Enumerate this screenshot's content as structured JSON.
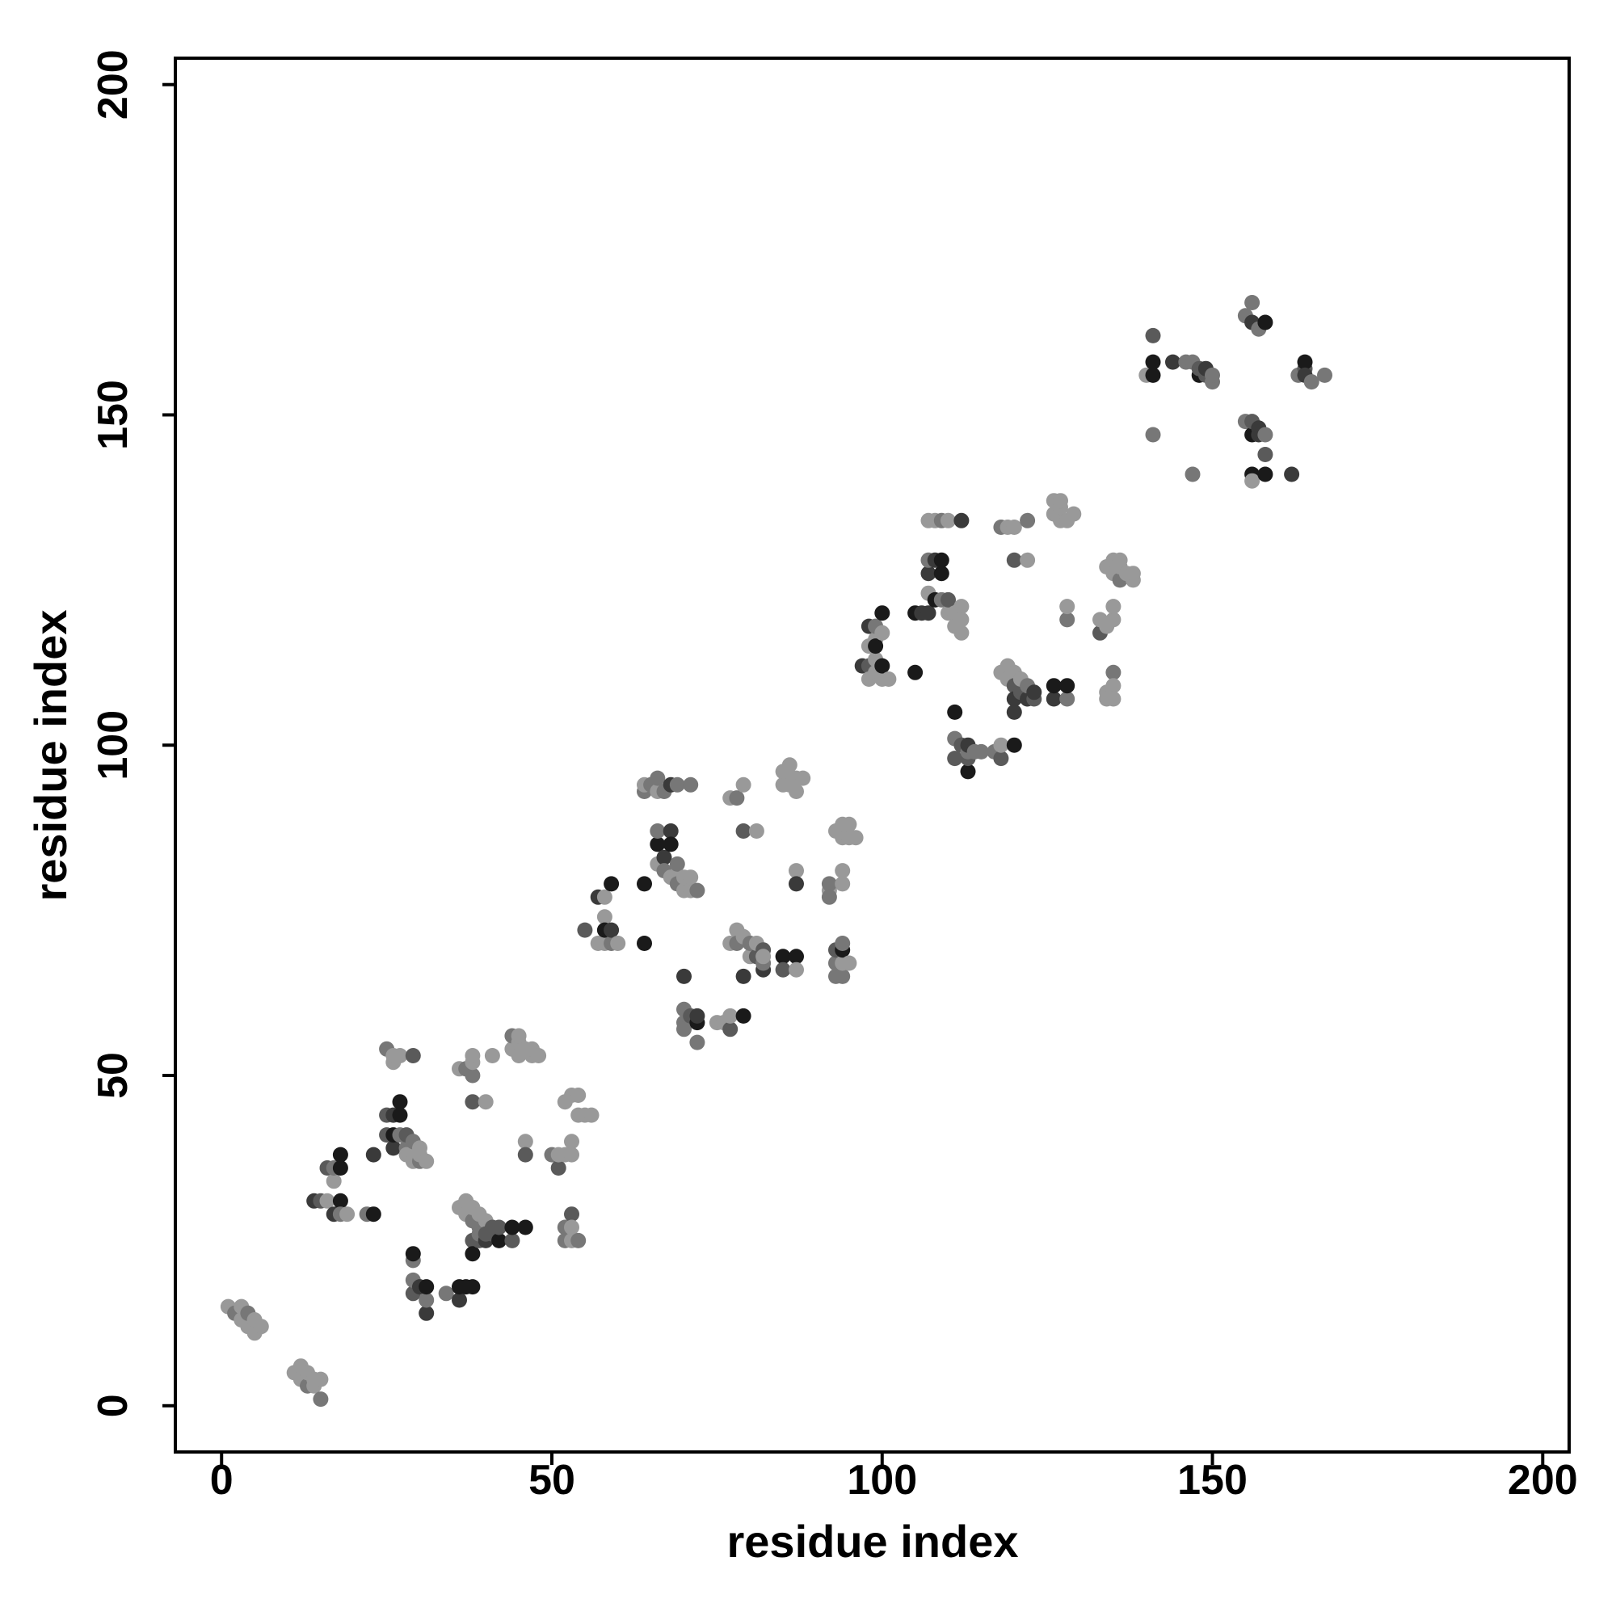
{
  "chart_data": {
    "type": "scatter",
    "title": "",
    "xlabel": "residue index",
    "ylabel": "residue index",
    "xlim": [
      -7,
      204
    ],
    "ylim": [
      -7,
      204
    ],
    "xticks": [
      0,
      50,
      100,
      150,
      200
    ],
    "yticks": [
      0,
      50,
      100,
      150,
      200
    ],
    "xtick_labels": [
      "0",
      "50",
      "100",
      "150",
      "200"
    ],
    "ytick_labels": [
      "0",
      "50",
      "100",
      "150",
      "200"
    ],
    "grid": false,
    "legend": "none",
    "colors": {
      "c1": "#1a1a1a",
      "c2": "#3a3a3a",
      "c3": "#5a5a5a",
      "c4": "#777777",
      "c5": "#999999"
    },
    "points": [
      [
        1,
        15,
        5
      ],
      [
        2,
        14,
        4
      ],
      [
        3,
        13,
        5
      ],
      [
        3,
        15,
        5
      ],
      [
        4,
        12,
        5
      ],
      [
        4,
        14,
        4
      ],
      [
        5,
        11,
        5
      ],
      [
        5,
        13,
        5
      ],
      [
        6,
        12,
        5
      ],
      [
        11,
        5,
        5
      ],
      [
        12,
        4,
        5
      ],
      [
        12,
        6,
        5
      ],
      [
        13,
        3,
        4
      ],
      [
        13,
        5,
        5
      ],
      [
        14,
        4,
        5
      ],
      [
        14,
        3,
        5
      ],
      [
        15,
        1,
        4
      ],
      [
        15,
        4,
        5
      ],
      [
        14,
        31,
        2
      ],
      [
        15,
        31,
        3
      ],
      [
        16,
        31,
        5
      ],
      [
        16,
        36,
        3
      ],
      [
        17,
        34,
        5
      ],
      [
        17,
        29,
        2
      ],
      [
        17,
        36,
        4
      ],
      [
        18,
        31,
        1
      ],
      [
        18,
        36,
        1
      ],
      [
        18,
        38,
        1
      ],
      [
        18,
        29,
        4
      ],
      [
        19,
        29,
        5
      ],
      [
        22,
        29,
        4
      ],
      [
        23,
        29,
        1
      ],
      [
        23,
        38,
        2
      ],
      [
        25,
        41,
        3
      ],
      [
        25,
        44,
        3
      ],
      [
        25,
        54,
        4
      ],
      [
        26,
        39,
        2
      ],
      [
        26,
        41,
        1
      ],
      [
        26,
        44,
        2
      ],
      [
        26,
        52,
        5
      ],
      [
        26,
        53,
        5
      ],
      [
        27,
        41,
        4
      ],
      [
        27,
        44,
        1
      ],
      [
        27,
        46,
        1
      ],
      [
        27,
        53,
        5
      ],
      [
        28,
        39,
        4
      ],
      [
        28,
        41,
        3
      ],
      [
        28,
        38,
        5
      ],
      [
        29,
        38,
        5
      ],
      [
        29,
        40,
        4
      ],
      [
        29,
        53,
        3
      ],
      [
        29,
        37,
        5
      ],
      [
        30,
        37,
        4
      ],
      [
        30,
        38,
        5
      ],
      [
        30,
        39,
        5
      ],
      [
        31,
        37,
        5
      ],
      [
        29,
        17,
        3
      ],
      [
        29,
        19,
        4
      ],
      [
        29,
        22,
        4
      ],
      [
        29,
        23,
        1
      ],
      [
        30,
        18,
        2
      ],
      [
        31,
        14,
        2
      ],
      [
        31,
        16,
        4
      ],
      [
        31,
        18,
        1
      ],
      [
        34,
        17,
        4
      ],
      [
        36,
        16,
        2
      ],
      [
        36,
        18,
        1
      ],
      [
        37,
        18,
        1
      ],
      [
        38,
        18,
        1
      ],
      [
        36,
        30,
        5
      ],
      [
        36,
        51,
        5
      ],
      [
        37,
        29,
        5
      ],
      [
        37,
        31,
        5
      ],
      [
        37,
        51,
        4
      ],
      [
        38,
        28,
        4
      ],
      [
        38,
        30,
        5
      ],
      [
        38,
        25,
        3
      ],
      [
        38,
        23,
        1
      ],
      [
        38,
        46,
        3
      ],
      [
        38,
        50,
        4
      ],
      [
        38,
        52,
        5
      ],
      [
        38,
        53,
        5
      ],
      [
        39,
        27,
        4
      ],
      [
        39,
        29,
        5
      ],
      [
        39,
        25,
        3
      ],
      [
        39,
        26,
        4
      ],
      [
        40,
        28,
        5
      ],
      [
        40,
        25,
        2
      ],
      [
        40,
        26,
        3
      ],
      [
        40,
        46,
        5
      ],
      [
        41,
        27,
        3
      ],
      [
        41,
        26,
        3
      ],
      [
        41,
        53,
        5
      ],
      [
        42,
        25,
        1
      ],
      [
        42,
        27,
        3
      ],
      [
        44,
        25,
        3
      ],
      [
        44,
        27,
        1
      ],
      [
        44,
        54,
        5
      ],
      [
        44,
        56,
        4
      ],
      [
        45,
        53,
        5
      ],
      [
        45,
        55,
        5
      ],
      [
        45,
        56,
        5
      ],
      [
        46,
        40,
        5
      ],
      [
        46,
        38,
        3
      ],
      [
        46,
        27,
        1
      ],
      [
        46,
        54,
        5
      ],
      [
        47,
        53,
        5
      ],
      [
        47,
        54,
        5
      ],
      [
        48,
        53,
        5
      ],
      [
        50,
        38,
        4
      ],
      [
        51,
        36,
        3
      ],
      [
        51,
        38,
        5
      ],
      [
        52,
        38,
        5
      ],
      [
        52,
        46,
        5
      ],
      [
        52,
        25,
        4
      ],
      [
        52,
        27,
        4
      ],
      [
        53,
        47,
        5
      ],
      [
        53,
        40,
        5
      ],
      [
        53,
        38,
        5
      ],
      [
        53,
        29,
        3
      ],
      [
        53,
        27,
        5
      ],
      [
        53,
        25,
        5
      ],
      [
        54,
        44,
        5
      ],
      [
        54,
        47,
        5
      ],
      [
        54,
        25,
        4
      ],
      [
        55,
        44,
        5
      ],
      [
        56,
        44,
        5
      ],
      [
        55,
        72,
        3
      ],
      [
        57,
        77,
        2
      ],
      [
        57,
        70,
        5
      ],
      [
        58,
        74,
        5
      ],
      [
        58,
        70,
        5
      ],
      [
        58,
        72,
        1
      ],
      [
        58,
        77,
        5
      ],
      [
        59,
        70,
        4
      ],
      [
        59,
        72,
        2
      ],
      [
        59,
        79,
        1
      ],
      [
        60,
        70,
        5
      ],
      [
        64,
        79,
        1
      ],
      [
        64,
        70,
        1
      ],
      [
        64,
        93,
        4
      ],
      [
        64,
        94,
        5
      ],
      [
        65,
        94,
        4
      ],
      [
        66,
        82,
        5
      ],
      [
        66,
        85,
        1
      ],
      [
        66,
        87,
        4
      ],
      [
        66,
        93,
        5
      ],
      [
        66,
        95,
        4
      ],
      [
        67,
        83,
        2
      ],
      [
        67,
        93,
        4
      ],
      [
        67,
        81,
        4
      ],
      [
        68,
        80,
        5
      ],
      [
        68,
        94,
        2
      ],
      [
        68,
        87,
        2
      ],
      [
        68,
        85,
        1
      ],
      [
        69,
        80,
        5
      ],
      [
        69,
        82,
        4
      ],
      [
        69,
        94,
        4
      ],
      [
        69,
        79,
        4
      ],
      [
        70,
        78,
        5
      ],
      [
        70,
        80,
        5
      ],
      [
        70,
        65,
        2
      ],
      [
        70,
        60,
        4
      ],
      [
        70,
        58,
        4
      ],
      [
        70,
        57,
        4
      ],
      [
        71,
        78,
        5
      ],
      [
        71,
        80,
        5
      ],
      [
        71,
        59,
        3
      ],
      [
        71,
        94,
        4
      ],
      [
        72,
        58,
        1
      ],
      [
        72,
        55,
        4
      ],
      [
        72,
        59,
        2
      ],
      [
        72,
        78,
        4
      ],
      [
        75,
        58,
        5
      ],
      [
        76,
        58,
        5
      ],
      [
        77,
        57,
        3
      ],
      [
        77,
        59,
        5
      ],
      [
        77,
        70,
        5
      ],
      [
        77,
        92,
        5
      ],
      [
        78,
        72,
        5
      ],
      [
        78,
        70,
        4
      ],
      [
        78,
        92,
        4
      ],
      [
        79,
        71,
        5
      ],
      [
        79,
        87,
        3
      ],
      [
        79,
        94,
        5
      ],
      [
        79,
        59,
        1
      ],
      [
        79,
        65,
        2
      ],
      [
        80,
        68,
        5
      ],
      [
        80,
        70,
        4
      ],
      [
        81,
        68,
        3
      ],
      [
        81,
        70,
        5
      ],
      [
        81,
        87,
        5
      ],
      [
        82,
        66,
        2
      ],
      [
        82,
        67,
        4
      ],
      [
        82,
        69,
        3
      ],
      [
        82,
        68,
        5
      ],
      [
        85,
        94,
        5
      ],
      [
        85,
        96,
        5
      ],
      [
        85,
        68,
        1
      ],
      [
        85,
        66,
        3
      ],
      [
        86,
        95,
        5
      ],
      [
        86,
        94,
        5
      ],
      [
        86,
        97,
        5
      ],
      [
        87,
        95,
        5
      ],
      [
        87,
        93,
        5
      ],
      [
        87,
        81,
        5
      ],
      [
        87,
        79,
        2
      ],
      [
        87,
        68,
        1
      ],
      [
        87,
        66,
        5
      ],
      [
        88,
        95,
        5
      ],
      [
        92,
        78,
        5
      ],
      [
        92,
        79,
        4
      ],
      [
        92,
        77,
        4
      ],
      [
        93,
        87,
        5
      ],
      [
        93,
        65,
        4
      ],
      [
        93,
        67,
        4
      ],
      [
        93,
        69,
        3
      ],
      [
        94,
        86,
        5
      ],
      [
        94,
        88,
        5
      ],
      [
        94,
        79,
        5
      ],
      [
        94,
        81,
        5
      ],
      [
        94,
        65,
        4
      ],
      [
        94,
        67,
        5
      ],
      [
        94,
        69,
        1
      ],
      [
        94,
        70,
        4
      ],
      [
        95,
        86,
        5
      ],
      [
        95,
        88,
        5
      ],
      [
        95,
        67,
        5
      ],
      [
        96,
        86,
        5
      ],
      [
        97,
        112,
        2
      ],
      [
        98,
        112,
        3
      ],
      [
        98,
        110,
        5
      ],
      [
        98,
        115,
        5
      ],
      [
        98,
        118,
        2
      ],
      [
        99,
        111,
        5
      ],
      [
        99,
        113,
        5
      ],
      [
        99,
        116,
        5
      ],
      [
        99,
        118,
        4
      ],
      [
        99,
        115,
        1
      ],
      [
        100,
        110,
        5
      ],
      [
        100,
        112,
        1
      ],
      [
        100,
        117,
        5
      ],
      [
        100,
        120,
        1
      ],
      [
        101,
        110,
        5
      ],
      [
        105,
        120,
        1
      ],
      [
        105,
        111,
        1
      ],
      [
        106,
        120,
        2
      ],
      [
        107,
        120,
        2
      ],
      [
        107,
        123,
        5
      ],
      [
        107,
        126,
        2
      ],
      [
        107,
        128,
        4
      ],
      [
        107,
        134,
        5
      ],
      [
        108,
        122,
        1
      ],
      [
        108,
        128,
        2
      ],
      [
        108,
        134,
        5
      ],
      [
        109,
        122,
        4
      ],
      [
        109,
        126,
        1
      ],
      [
        109,
        128,
        1
      ],
      [
        109,
        134,
        4
      ],
      [
        110,
        120,
        5
      ],
      [
        110,
        122,
        3
      ],
      [
        110,
        134,
        5
      ],
      [
        111,
        120,
        5
      ],
      [
        111,
        118,
        5
      ],
      [
        111,
        105,
        1
      ],
      [
        111,
        101,
        4
      ],
      [
        111,
        98,
        3
      ],
      [
        112,
        121,
        5
      ],
      [
        112,
        119,
        5
      ],
      [
        112,
        117,
        5
      ],
      [
        112,
        100,
        3
      ],
      [
        112,
        134,
        2
      ],
      [
        113,
        96,
        1
      ],
      [
        113,
        98,
        3
      ],
      [
        113,
        99,
        4
      ],
      [
        113,
        100,
        2
      ],
      [
        114,
        99,
        4
      ],
      [
        115,
        99,
        4
      ],
      [
        117,
        99,
        4
      ],
      [
        118,
        98,
        3
      ],
      [
        118,
        100,
        5
      ],
      [
        118,
        111,
        5
      ],
      [
        118,
        133,
        4
      ],
      [
        119,
        112,
        5
      ],
      [
        119,
        110,
        5
      ],
      [
        119,
        133,
        5
      ],
      [
        120,
        133,
        5
      ],
      [
        120,
        128,
        3
      ],
      [
        120,
        111,
        5
      ],
      [
        120,
        109,
        3
      ],
      [
        120,
        107,
        2
      ],
      [
        120,
        105,
        2
      ],
      [
        120,
        100,
        1
      ],
      [
        121,
        108,
        3
      ],
      [
        121,
        110,
        5
      ],
      [
        122,
        107,
        2
      ],
      [
        122,
        109,
        4
      ],
      [
        122,
        128,
        5
      ],
      [
        122,
        134,
        4
      ],
      [
        123,
        107,
        3
      ],
      [
        123,
        108,
        2
      ],
      [
        126,
        107,
        2
      ],
      [
        126,
        109,
        1
      ],
      [
        126,
        135,
        5
      ],
      [
        126,
        137,
        5
      ],
      [
        127,
        134,
        5
      ],
      [
        127,
        136,
        5
      ],
      [
        127,
        137,
        5
      ],
      [
        128,
        107,
        4
      ],
      [
        128,
        109,
        1
      ],
      [
        128,
        119,
        4
      ],
      [
        128,
        121,
        5
      ],
      [
        128,
        134,
        5
      ],
      [
        129,
        135,
        5
      ],
      [
        133,
        117,
        3
      ],
      [
        133,
        119,
        5
      ],
      [
        134,
        118,
        5
      ],
      [
        134,
        108,
        5
      ],
      [
        134,
        107,
        5
      ],
      [
        134,
        127,
        5
      ],
      [
        135,
        128,
        5
      ],
      [
        135,
        126,
        5
      ],
      [
        135,
        111,
        4
      ],
      [
        135,
        109,
        5
      ],
      [
        135,
        119,
        5
      ],
      [
        135,
        121,
        5
      ],
      [
        135,
        107,
        5
      ],
      [
        136,
        125,
        4
      ],
      [
        136,
        127,
        5
      ],
      [
        136,
        128,
        5
      ],
      [
        137,
        126,
        5
      ],
      [
        138,
        125,
        5
      ],
      [
        138,
        126,
        5
      ],
      [
        140,
        156,
        5
      ],
      [
        141,
        147,
        4
      ],
      [
        141,
        156,
        1
      ],
      [
        141,
        158,
        1
      ],
      [
        141,
        162,
        3
      ],
      [
        144,
        158,
        2
      ],
      [
        146,
        158,
        4
      ],
      [
        147,
        141,
        4
      ],
      [
        147,
        158,
        4
      ],
      [
        148,
        156,
        1
      ],
      [
        148,
        157,
        3
      ],
      [
        149,
        156,
        3
      ],
      [
        149,
        157,
        2
      ],
      [
        150,
        155,
        4
      ],
      [
        150,
        156,
        4
      ],
      [
        155,
        149,
        4
      ],
      [
        155,
        165,
        4
      ],
      [
        156,
        147,
        1
      ],
      [
        156,
        149,
        3
      ],
      [
        156,
        141,
        1
      ],
      [
        156,
        140,
        5
      ],
      [
        156,
        164,
        2
      ],
      [
        156,
        167,
        4
      ],
      [
        157,
        163,
        4
      ],
      [
        157,
        147,
        2
      ],
      [
        157,
        148,
        2
      ],
      [
        158,
        141,
        1
      ],
      [
        158,
        147,
        4
      ],
      [
        158,
        164,
        1
      ],
      [
        158,
        144,
        3
      ],
      [
        162,
        141,
        2
      ],
      [
        163,
        156,
        4
      ],
      [
        164,
        157,
        3
      ],
      [
        164,
        158,
        1
      ],
      [
        164,
        156,
        2
      ],
      [
        165,
        155,
        4
      ],
      [
        167,
        156,
        4
      ]
    ]
  }
}
